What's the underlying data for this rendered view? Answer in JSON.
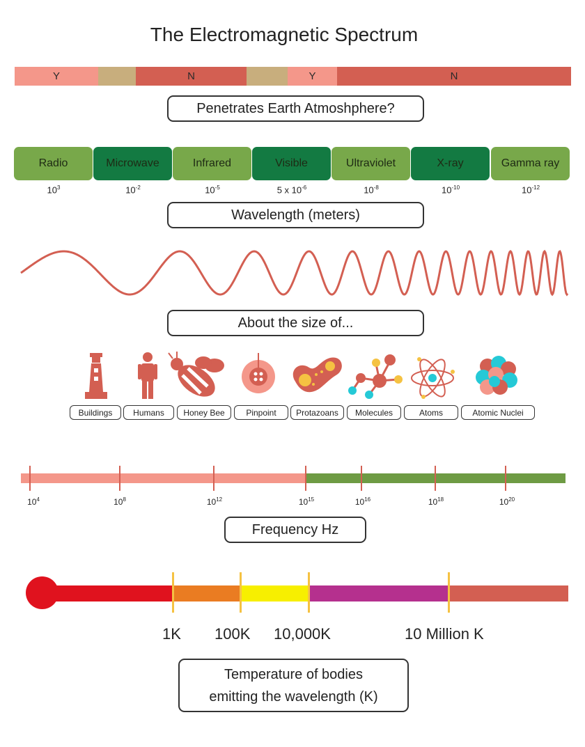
{
  "title": "The Electromagnetic Spectrum",
  "penetration": {
    "segments": [
      {
        "label": "Y",
        "color": "#f4978a"
      },
      {
        "label": "",
        "color": "#c8ae7d"
      },
      {
        "label": "N",
        "color": "#d35f52"
      },
      {
        "label": "",
        "color": "#c8ae7d"
      },
      {
        "label": "Y",
        "color": "#f4978a"
      },
      {
        "label": "N",
        "color": "#d35f52"
      }
    ],
    "caption": "Penetrates Earth Atmoshphere?"
  },
  "bands": [
    {
      "name": "Radio",
      "color": "#78a84a",
      "wavelength_base": "10",
      "wavelength_exp": "3"
    },
    {
      "name": "Microwave",
      "color": "#137a42",
      "wavelength_base": "10",
      "wavelength_exp": "-2"
    },
    {
      "name": "Infrared",
      "color": "#78a84a",
      "wavelength_base": "10",
      "wavelength_exp": "-5"
    },
    {
      "name": "Visible",
      "color": "#137a42",
      "wavelength_base": "5 x 10",
      "wavelength_exp": "-6"
    },
    {
      "name": "Ultraviolet",
      "color": "#78a84a",
      "wavelength_base": "10",
      "wavelength_exp": "-8"
    },
    {
      "name": "X-ray",
      "color": "#137a42",
      "wavelength_base": "10",
      "wavelength_exp": "-10"
    },
    {
      "name": "Gamma ray",
      "color": "#78a84a",
      "wavelength_base": "10",
      "wavelength_exp": "-12"
    }
  ],
  "wavelength_caption": "Wavelength (meters)",
  "size_caption": "About the size of...",
  "sizes": [
    "Buildings",
    "Humans",
    "Honey Bee",
    "Pinpoint",
    "Protazoans",
    "Molecules",
    "Atoms",
    "Atomic Nuclei"
  ],
  "frequency": {
    "caption": "Frequency Hz",
    "ticks": [
      {
        "base": "10",
        "exp": "4"
      },
      {
        "base": "10",
        "exp": "8"
      },
      {
        "base": "10",
        "exp": "12"
      },
      {
        "base": "10",
        "exp": "15"
      },
      {
        "base": "10",
        "exp": "16"
      },
      {
        "base": "10",
        "exp": "18"
      },
      {
        "base": "10",
        "exp": "20"
      }
    ],
    "colors": {
      "low": "#f4978a",
      "high": "#6e9b44",
      "tick": "#d35f52"
    }
  },
  "temperature": {
    "labels": [
      "1K",
      "100K",
      "10,000K",
      "10 Million K"
    ],
    "caption_line1": "Temperature of bodies",
    "caption_line2": "emitting the wavelength (K)",
    "colors": [
      "#e0121e",
      "#ea7c22",
      "#f7ef00",
      "#b5308e",
      "#d35f52"
    ],
    "marker_color": "#f5c242"
  },
  "wave_color": "#d35f52"
}
